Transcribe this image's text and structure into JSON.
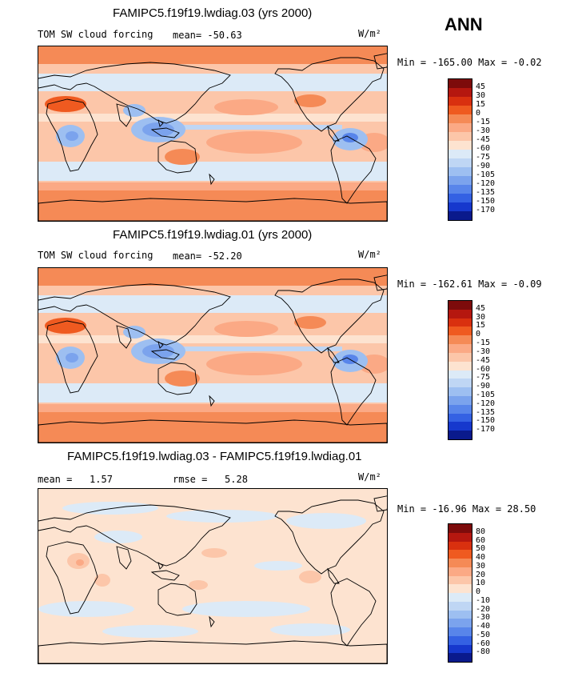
{
  "season": "ANN",
  "units": "W/m²",
  "colors": {
    "ocean_base": "#fde8da",
    "coast": "#000000"
  },
  "chart_data": [
    {
      "type": "heatmap",
      "title": "FAMIPC5.f19f19.lwdiag.03 (yrs 2000)",
      "variable": "TOM SW cloud forcing",
      "mean_label": "mean=",
      "mean": "-50.63",
      "units": "W/m²",
      "min_max": "Min = -165.00 Max =  -0.02",
      "contour_levels": [
        "45",
        "30",
        "15",
        "0",
        "-15",
        "-30",
        "-45",
        "-60",
        "-75",
        "-90",
        "-105",
        "-120",
        "-135",
        "-150",
        "-170"
      ],
      "colors": [
        "#7d0b0b",
        "#b5170f",
        "#d9300f",
        "#ef5a20",
        "#f58a56",
        "#fba985",
        "#fcc6a9",
        "#fde3d0",
        "#dceaf7",
        "#bfd6f4",
        "#9dbff1",
        "#7ba3ed",
        "#5885ea",
        "#3461e3",
        "#1638cd",
        "#0a1a8c"
      ]
    },
    {
      "type": "heatmap",
      "title": "FAMIPC5.f19f19.lwdiag.01 (yrs 2000)",
      "variable": "TOM SW cloud forcing",
      "mean_label": "mean=",
      "mean": "-52.20",
      "units": "W/m²",
      "min_max": "Min = -162.61 Max =  -0.09",
      "contour_levels": [
        "45",
        "30",
        "15",
        "0",
        "-15",
        "-30",
        "-45",
        "-60",
        "-75",
        "-90",
        "-105",
        "-120",
        "-135",
        "-150",
        "-170"
      ],
      "colors": [
        "#7d0b0b",
        "#b5170f",
        "#d9300f",
        "#ef5a20",
        "#f58a56",
        "#fba985",
        "#fcc6a9",
        "#fde3d0",
        "#dceaf7",
        "#bfd6f4",
        "#9dbff1",
        "#7ba3ed",
        "#5885ea",
        "#3461e3",
        "#1638cd",
        "#0a1a8c"
      ]
    },
    {
      "type": "heatmap",
      "title": "FAMIPC5.f19f19.lwdiag.03 - FAMIPC5.f19f19.lwdiag.01",
      "mean_label": "mean =",
      "mean": "1.57",
      "rmse_label": "rmse =",
      "rmse": "5.28",
      "units": "W/m²",
      "min_max": "Min = -16.96 Max =  28.50",
      "contour_levels": [
        "80",
        "60",
        "50",
        "40",
        "30",
        "20",
        "10",
        "0",
        "-10",
        "-20",
        "-30",
        "-40",
        "-50",
        "-60",
        "-80"
      ],
      "colors": [
        "#7d0b0b",
        "#b5170f",
        "#d9300f",
        "#ef5a20",
        "#f58a56",
        "#fba985",
        "#fcc6a9",
        "#fde3d0",
        "#dceaf7",
        "#bfd6f4",
        "#9dbff1",
        "#7ba3ed",
        "#5885ea",
        "#3461e3",
        "#1638cd",
        "#0a1a8c"
      ]
    }
  ]
}
